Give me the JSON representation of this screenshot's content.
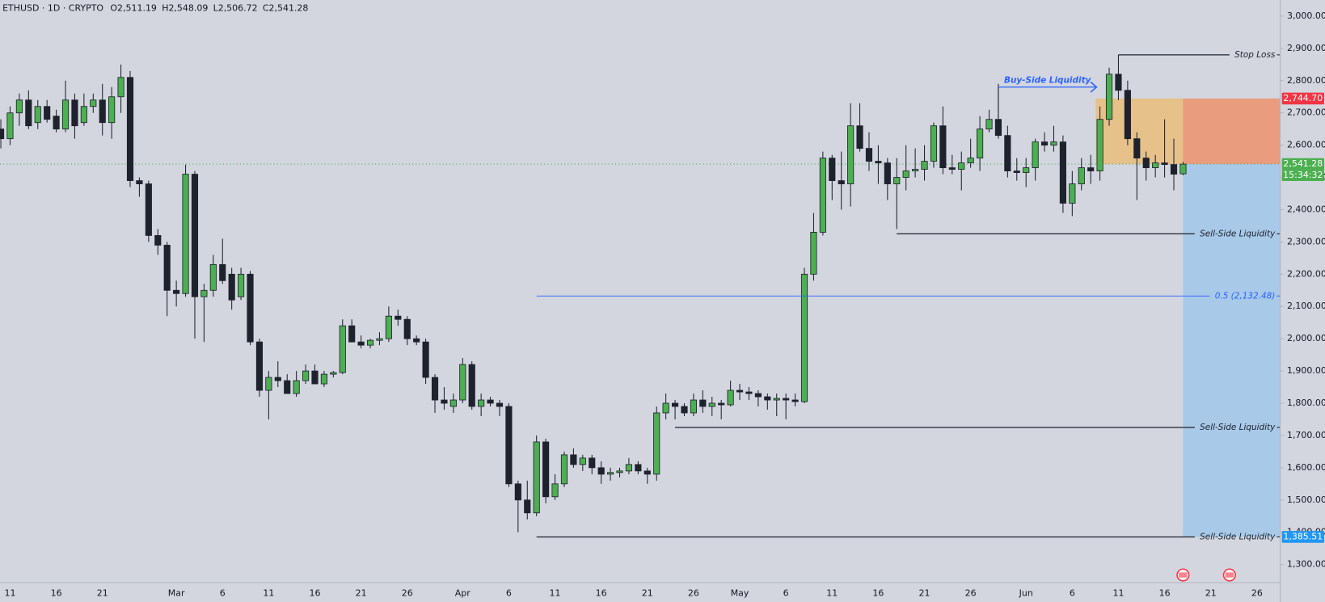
{
  "chart_data": {
    "type": "candlestick",
    "header": {
      "symbol": "ETHUSD · 1D · CRYPTO",
      "ohlc": [
        {
          "key": "O",
          "text": "2,511.19"
        },
        {
          "key": "H",
          "text": "2,548.09"
        },
        {
          "key": "L",
          "text": "2,506.72"
        },
        {
          "key": "C",
          "text": "2,541.28"
        }
      ]
    },
    "categories": [
      null,
      "11",
      null,
      null,
      null,
      null,
      "16",
      null,
      null,
      null,
      null,
      "21",
      null,
      null,
      null,
      null,
      null,
      null,
      null,
      "Mar",
      null,
      null,
      null,
      null,
      "6",
      null,
      null,
      null,
      null,
      "11",
      null,
      null,
      null,
      null,
      "16",
      null,
      null,
      null,
      null,
      "21",
      null,
      null,
      null,
      null,
      "26",
      null,
      null,
      null,
      null,
      null,
      "Apr",
      null,
      null,
      null,
      null,
      "6",
      null,
      null,
      null,
      null,
      "11",
      null,
      null,
      null,
      null,
      "16",
      null,
      null,
      null,
      null,
      "21",
      null,
      null,
      null,
      null,
      "26",
      null,
      null,
      null,
      null,
      "May",
      null,
      null,
      null,
      null,
      "6",
      null,
      null,
      null,
      null,
      "11",
      null,
      null,
      null,
      null,
      "16",
      null,
      null,
      null,
      null,
      "21",
      null,
      null,
      null,
      null,
      "26",
      null,
      null,
      null,
      null,
      null,
      "Jun",
      null,
      null,
      null,
      null,
      "6",
      null,
      null,
      null,
      null,
      "11",
      null,
      null,
      null,
      null,
      "16",
      null,
      null,
      null,
      null,
      "21",
      null,
      null,
      null,
      null,
      "26",
      null,
      null
    ],
    "open": [
      2650,
      2620,
      2700,
      2740,
      2670,
      2720,
      2690,
      2650,
      2740,
      2670,
      2720,
      2740,
      2670,
      2750,
      2810,
      2490,
      2480,
      2320,
      2290,
      2150,
      2140,
      2510,
      2130,
      2150,
      2230,
      2200,
      2130,
      2200,
      1990,
      1840,
      1880,
      1870,
      1830,
      1870,
      1900,
      1860,
      1890,
      1895,
      2040,
      1990,
      1980,
      1995,
      2000,
      2070,
      2060,
      2000,
      1990,
      1880,
      1810,
      1790,
      1810,
      1920,
      1790,
      1810,
      1800,
      1790,
      1550,
      1500,
      1460,
      1680,
      1510,
      1550,
      1640,
      1610,
      1630,
      1600,
      1580,
      1585,
      1590,
      1610,
      1590,
      1580,
      1770,
      1800,
      1790,
      1770,
      1810,
      1790,
      1800,
      1795,
      1840,
      1835,
      1830,
      1820,
      1810,
      1815,
      1810,
      1805,
      2200,
      2330,
      2560,
      2490,
      2480,
      2660,
      2590,
      2550,
      2545,
      2480,
      2500,
      2520,
      2525,
      2550,
      2660,
      2530,
      2525,
      2545,
      2560,
      2650,
      2680,
      2630,
      2520,
      2515,
      2530,
      2610,
      2600,
      2610,
      2420,
      2480,
      2530,
      2520,
      2680,
      2820,
      2770,
      2620,
      2560,
      2530,
      2545,
      2540,
      2511.19,
      null,
      null,
      null,
      null,
      null,
      null,
      null,
      null,
      null,
      null
    ],
    "high": [
      2680,
      2720,
      2760,
      2770,
      2740,
      2740,
      2710,
      2800,
      2760,
      2760,
      2760,
      2790,
      2780,
      2850,
      2830,
      2500,
      2490,
      2340,
      2300,
      2180,
      2540,
      2520,
      2170,
      2260,
      2310,
      2220,
      2220,
      2210,
      2000,
      1900,
      1930,
      1890,
      1900,
      1920,
      1920,
      1900,
      1900,
      2060,
      2060,
      2010,
      2000,
      2020,
      2100,
      2090,
      2070,
      2010,
      2000,
      1890,
      1850,
      1830,
      1940,
      1930,
      1830,
      1820,
      1810,
      1800,
      1560,
      1560,
      1700,
      1690,
      1580,
      1650,
      1660,
      1640,
      1640,
      1620,
      1600,
      1600,
      1630,
      1620,
      1600,
      1790,
      1830,
      1810,
      1800,
      1830,
      1840,
      1820,
      1810,
      1870,
      1860,
      1850,
      1840,
      1830,
      1830,
      1830,
      1830,
      2220,
      2390,
      2580,
      2570,
      2580,
      2730,
      2730,
      2640,
      2600,
      2560,
      2560,
      2600,
      2590,
      2600,
      2670,
      2720,
      2570,
      2580,
      2620,
      2690,
      2710,
      2790,
      2660,
      2560,
      2560,
      2620,
      2640,
      2660,
      2630,
      2520,
      2560,
      2570,
      2720,
      2840,
      2880,
      2800,
      2640,
      2580,
      2570,
      2680,
      2620,
      2548.09,
      null,
      null,
      null,
      null,
      null,
      null,
      null,
      null,
      null,
      null
    ],
    "low": [
      2590,
      2600,
      2660,
      2650,
      2650,
      2670,
      2640,
      2640,
      2620,
      2660,
      2700,
      2630,
      2620,
      2700,
      2470,
      2440,
      2300,
      2260,
      2070,
      2100,
      2130,
      2000,
      1990,
      2130,
      2170,
      2090,
      2120,
      1980,
      1820,
      1750,
      1850,
      1830,
      1820,
      1860,
      1860,
      1850,
      1880,
      1890,
      1990,
      1970,
      1970,
      1980,
      1990,
      2040,
      1980,
      1980,
      1860,
      1770,
      1780,
      1770,
      1800,
      1780,
      1760,
      1790,
      1760,
      1540,
      1400,
      1440,
      1450,
      1490,
      1500,
      1540,
      1600,
      1590,
      1580,
      1550,
      1560,
      1570,
      1580,
      1580,
      1550,
      1560,
      1750,
      1750,
      1760,
      1760,
      1770,
      1760,
      1750,
      1790,
      1810,
      1810,
      1790,
      1780,
      1760,
      1750,
      1790,
      1800,
      2180,
      2320,
      2430,
      2400,
      2410,
      2580,
      2520,
      2480,
      2430,
      2340,
      2460,
      2500,
      2490,
      2530,
      2510,
      2510,
      2460,
      2530,
      2520,
      2640,
      2620,
      2500,
      2490,
      2470,
      2490,
      2580,
      2580,
      2390,
      2380,
      2460,
      2480,
      2490,
      2660,
      2740,
      2600,
      2430,
      2490,
      2500,
      2500,
      2460,
      2506.72,
      null,
      null,
      null,
      null,
      null,
      null,
      null,
      null,
      null,
      null
    ],
    "close": [
      2620,
      2700,
      2740,
      2660,
      2720,
      2680,
      2650,
      2740,
      2660,
      2720,
      2740,
      2670,
      2750,
      2810,
      2490,
      2480,
      2320,
      2290,
      2150,
      2140,
      2510,
      2130,
      2150,
      2230,
      2180,
      2120,
      2200,
      1990,
      1840,
      1880,
      1870,
      1830,
      1870,
      1900,
      1860,
      1890,
      1895,
      2040,
      1990,
      1980,
      1995,
      2000,
      2070,
      2060,
      2000,
      1990,
      1880,
      1810,
      1800,
      1810,
      1920,
      1790,
      1810,
      1800,
      1790,
      1550,
      1500,
      1460,
      1680,
      1510,
      1550,
      1640,
      1610,
      1630,
      1600,
      1580,
      1585,
      1590,
      1610,
      1590,
      1580,
      1770,
      1800,
      1790,
      1770,
      1810,
      1790,
      1800,
      1795,
      1840,
      1835,
      1830,
      1820,
      1810,
      1815,
      1810,
      1805,
      2200,
      2330,
      2560,
      2490,
      2480,
      2660,
      2590,
      2550,
      2545,
      2480,
      2500,
      2520,
      2525,
      2550,
      2660,
      2530,
      2525,
      2545,
      2560,
      2650,
      2680,
      2630,
      2520,
      2515,
      2530,
      2610,
      2600,
      2610,
      2420,
      2480,
      2530,
      2520,
      2680,
      2820,
      2770,
      2620,
      2560,
      2530,
      2545,
      2540,
      2510,
      2541.28,
      null,
      null,
      null,
      null,
      null,
      null,
      null,
      null,
      null,
      null
    ],
    "up_color": "#4caf50",
    "down_color": "#1e222d",
    "ylim": [
      1244,
      3050
    ],
    "yticks": [
      {
        "value": 1300,
        "label": "1,300.00"
      },
      {
        "value": 1400,
        "label": "1,400.00"
      },
      {
        "value": 1500,
        "label": "1,500.00"
      },
      {
        "value": 1600,
        "label": "1,600.00"
      },
      {
        "value": 1700,
        "label": "1,700.00"
      },
      {
        "value": 1800,
        "label": "1,800.00"
      },
      {
        "value": 1900,
        "label": "1,900.00"
      },
      {
        "value": 2000,
        "label": "2,000.00"
      },
      {
        "value": 2100,
        "label": "2,100.00"
      },
      {
        "value": 2200,
        "label": "2,200.00"
      },
      {
        "value": 2300,
        "label": "2,300.00"
      },
      {
        "value": 2400,
        "label": "2,400.00"
      },
      {
        "value": 2500,
        "label": "2,500.00"
      },
      {
        "value": 2600,
        "label": "2,600.00"
      },
      {
        "value": 2700,
        "label": "2,700.00"
      },
      {
        "value": 2800,
        "label": "2,800.00"
      },
      {
        "value": 2900,
        "label": "2,900.00"
      },
      {
        "value": 3000,
        "label": "3,000.00"
      }
    ],
    "levels": [
      {
        "label": "Stop Loss",
        "value": 2880
      },
      {
        "label": "Sell-Side Liquidity",
        "value": 2325
      },
      {
        "label": "Sell-Side Liquidity",
        "value": 1725
      },
      {
        "label": "Sell-Side Liquidity",
        "value": 1385.51
      },
      {
        "label": "0.5 (2,132.48)",
        "value": 2132.48,
        "color": "#2962ff"
      }
    ],
    "buy_side": {
      "label": "Buy-Side Liquidity",
      "value": 2780,
      "color": "#2962ff"
    },
    "position": {
      "entry": 2541.28,
      "stop": 2744.7,
      "target": 1385.51
    },
    "price_labels": [
      {
        "value": 2744.7,
        "label": "2,744.70",
        "color": "#f23645"
      },
      {
        "value": 2541.28,
        "label": "2,541.28",
        "color": "#4caf50"
      },
      {
        "value": 1385.51,
        "label": "1,385.51",
        "color": "#2196f3"
      }
    ],
    "countdown": "15:34:32"
  }
}
